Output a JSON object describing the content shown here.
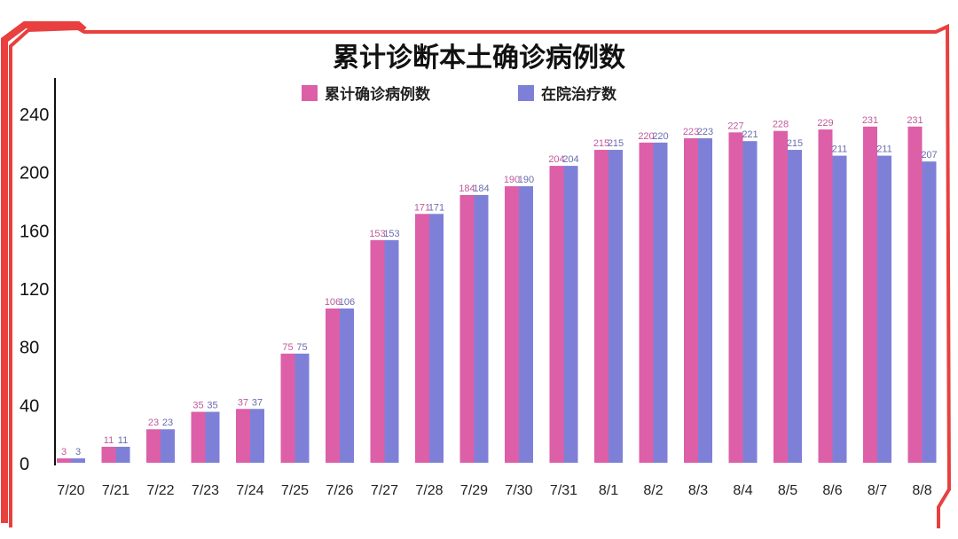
{
  "colors": {
    "frame": "#e8403f",
    "cumulative": "#dc5fa8",
    "hospital": "#7e80d8",
    "label_cum": "#c05a9a",
    "label_hosp": "#6a6cae"
  },
  "chart_data": {
    "type": "bar",
    "title": "累计诊断本土确诊病例数",
    "categories": [
      "7/20",
      "7/21",
      "7/22",
      "7/23",
      "7/24",
      "7/25",
      "7/26",
      "7/27",
      "7/28",
      "7/29",
      "7/30",
      "7/31",
      "8/1",
      "8/2",
      "8/3",
      "8/4",
      "8/5",
      "8/6",
      "8/7",
      "8/8"
    ],
    "series": [
      {
        "name": "累计确诊病例数",
        "values": [
          3,
          11,
          23,
          35,
          37,
          75,
          106,
          153,
          171,
          184,
          190,
          204,
          215,
          220,
          223,
          227,
          228,
          229,
          231,
          231
        ]
      },
      {
        "name": "在院治疗数",
        "values": [
          3,
          11,
          23,
          35,
          37,
          75,
          106,
          153,
          171,
          184,
          190,
          204,
          215,
          220,
          223,
          221,
          215,
          211,
          211,
          207
        ]
      }
    ],
    "yticks": [
      0,
      40,
      80,
      120,
      160,
      200,
      240
    ],
    "ylim": [
      0,
      265
    ],
    "xlabel": "",
    "ylabel": "",
    "grid": false,
    "legend": "top"
  }
}
